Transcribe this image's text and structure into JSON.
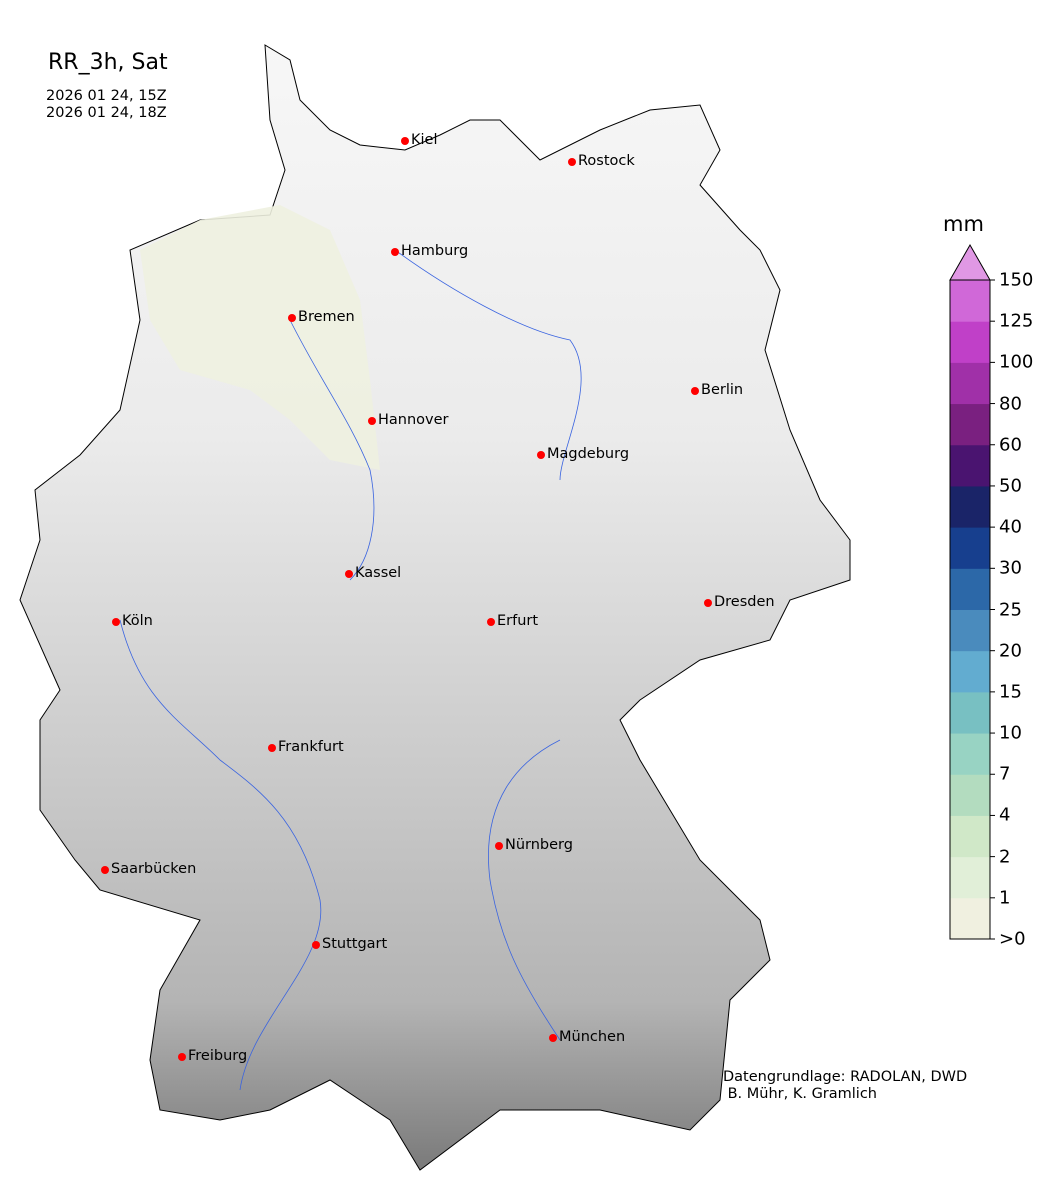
{
  "title": "RR_3h, Sat",
  "valid_from": "2026 01 24, 15Z",
  "valid_to": "2026 01 24, 18Z",
  "cities": [
    "Kiel",
    "Rostock",
    "Hamburg",
    "Bremen",
    "Berlin",
    "Hannover",
    "Magdeburg",
    "Kassel",
    "Köln",
    "Erfurt",
    "Dresden",
    "Frankfurt",
    "Nürnberg",
    "Saarbücken",
    "Stuttgart",
    "München",
    "Freiburg"
  ],
  "colorbar": {
    "unit": "mm",
    "ticks": [
      ">0",
      "1",
      "2",
      "4",
      "7",
      "10",
      "15",
      "20",
      "25",
      "30",
      "40",
      "50",
      "60",
      "80",
      "100",
      "125",
      "150"
    ],
    "colors": [
      "#f0f0e0",
      "#e1efd8",
      "#d0e8c8",
      "#b3dcbf",
      "#98d3c3",
      "#78c0c2",
      "#62acd0",
      "#4a8bbd",
      "#2c68a8",
      "#173f8e",
      "#1a2468",
      "#4a1470",
      "#7a2080",
      "#a030a8",
      "#c040c8",
      "#d068d8"
    ],
    "extend_color": "#e098e4"
  },
  "credit": "Datengrundlage: RADOLAN, DWD\n B. Mühr, K. Gramlich"
}
